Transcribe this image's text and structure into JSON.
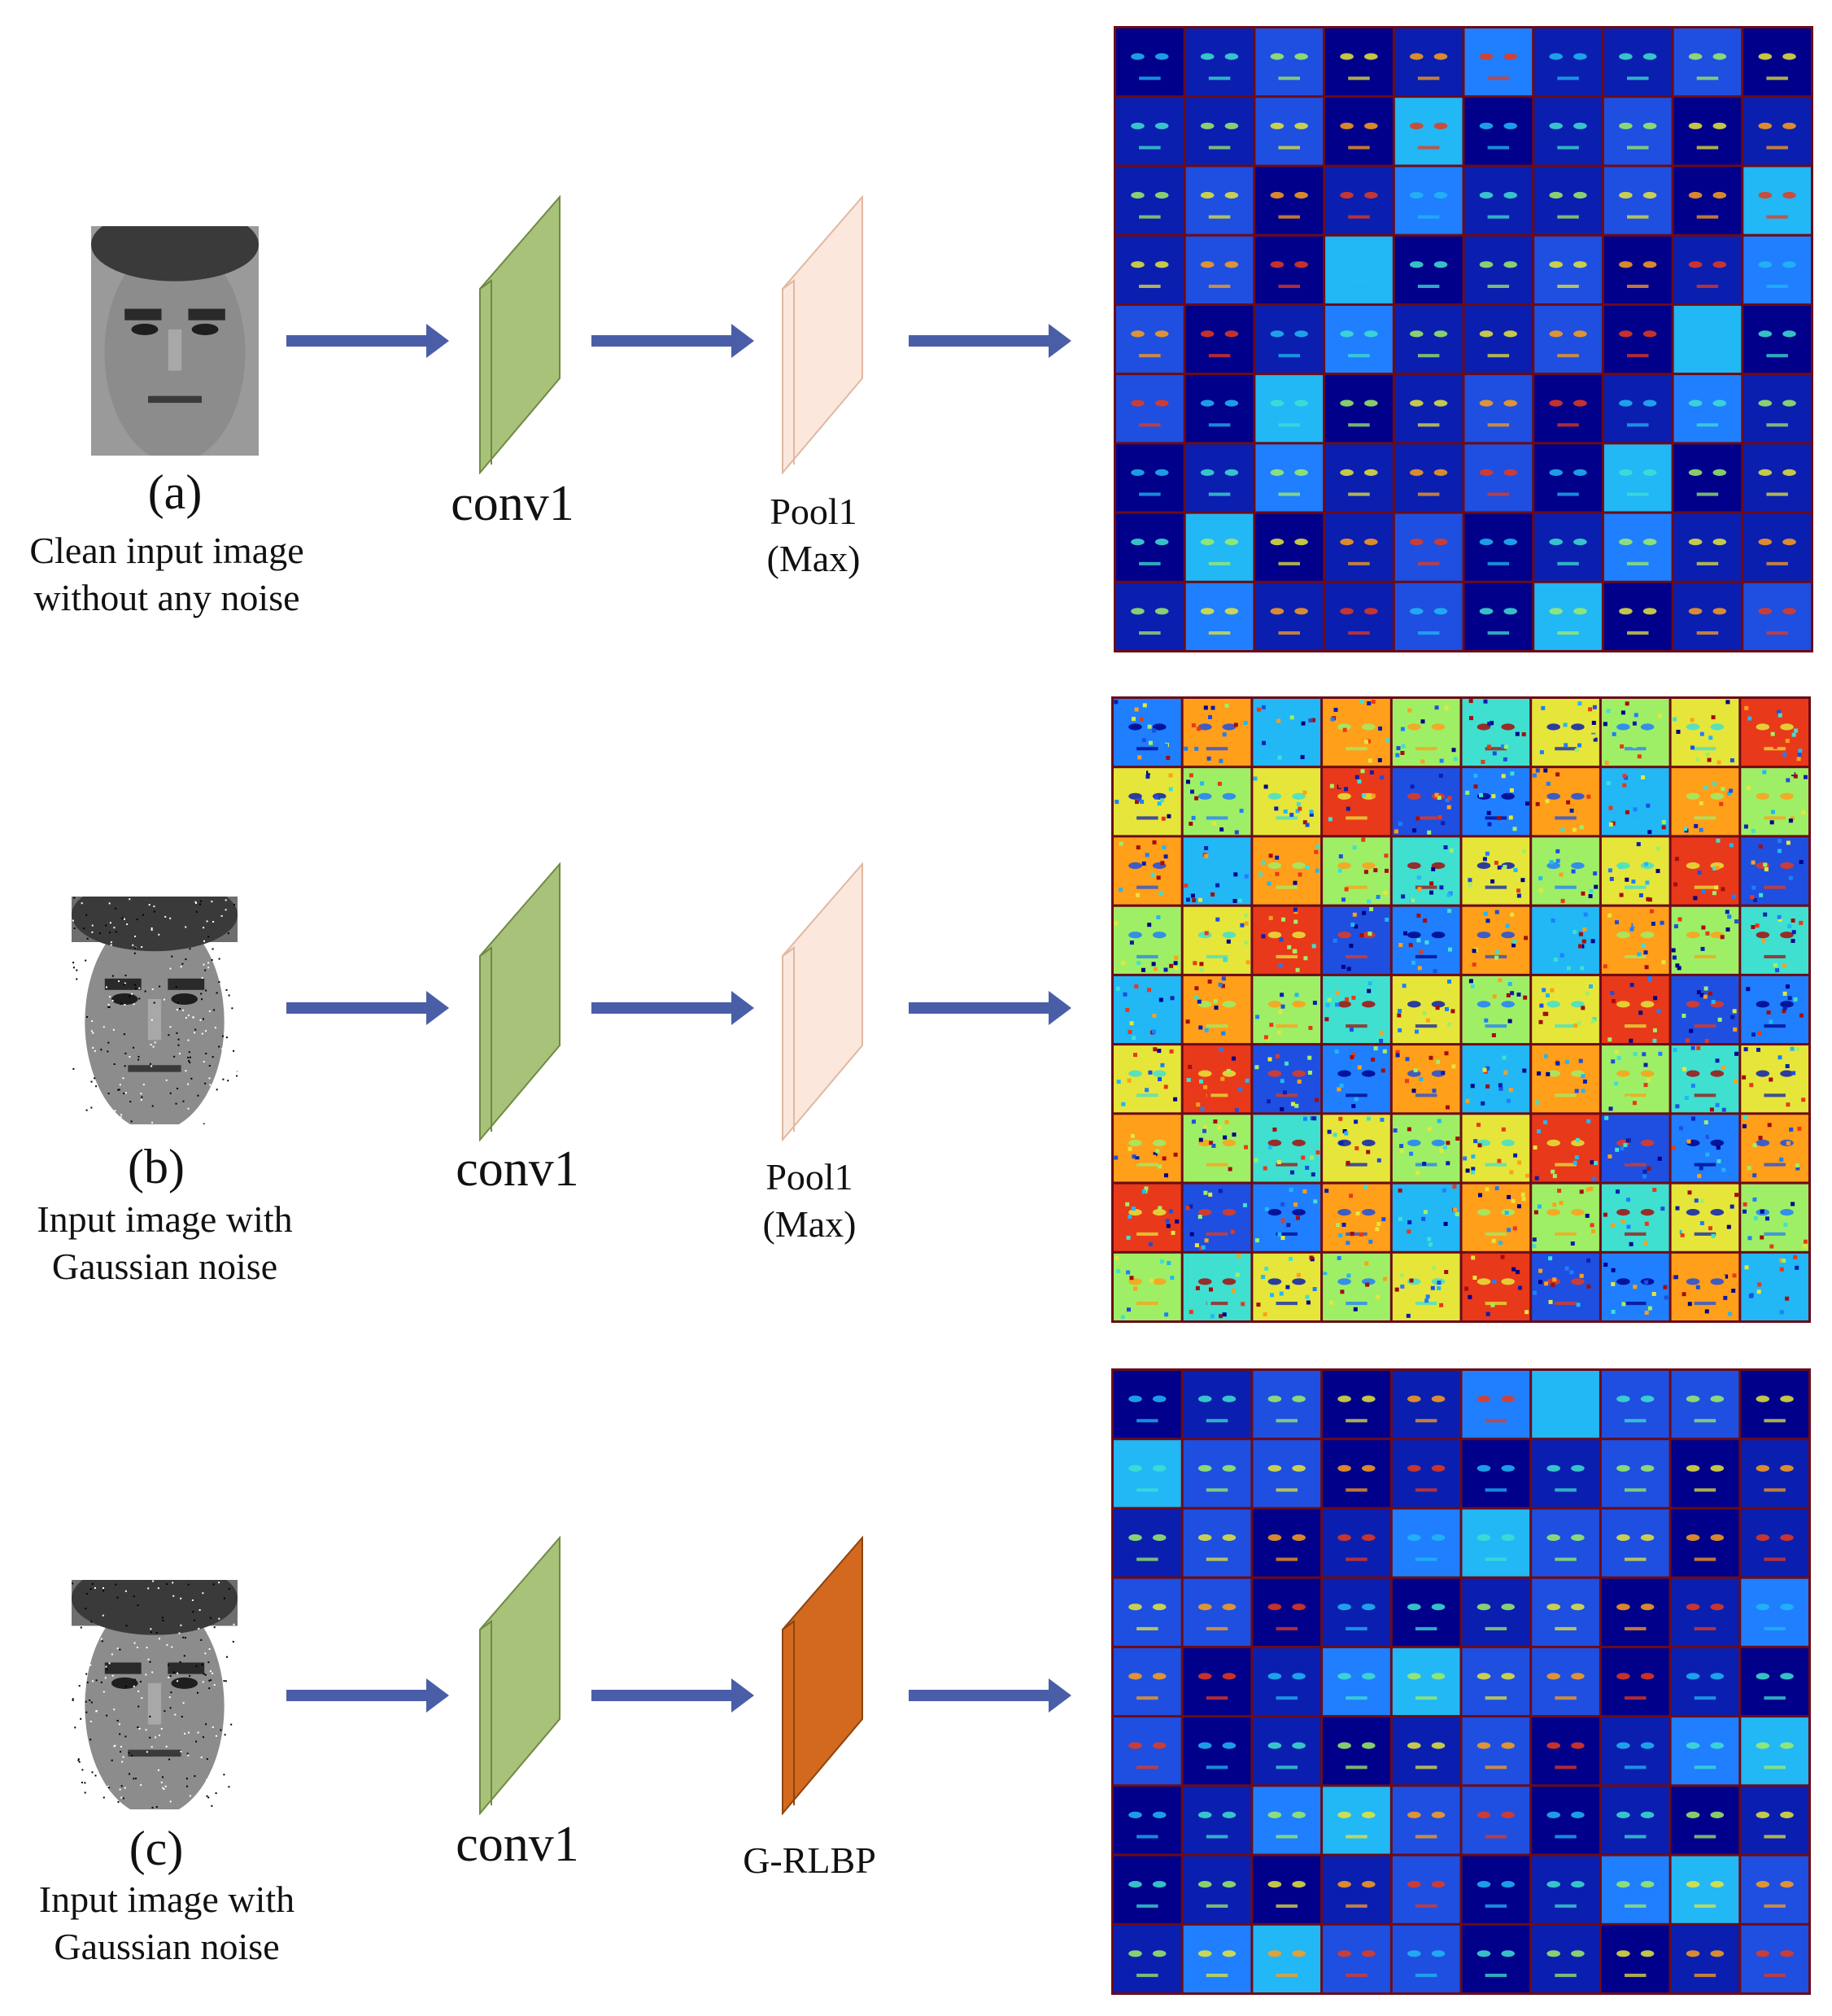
{
  "rows": [
    {
      "letter": "(a)",
      "caption_line1": "Clean input image",
      "caption_line2": "without any noise",
      "layer1": "conv1",
      "layer2_line1": "Pool1",
      "layer2_line2": "(Max)",
      "noisy": false,
      "layer2_color": "#fbe7dc"
    },
    {
      "letter": "(b)",
      "caption_line1": "Input image with",
      "caption_line2": "Gaussian noise",
      "layer1": "conv1",
      "layer2_line1": "Pool1",
      "layer2_line2": "(Max)",
      "noisy": true,
      "layer2_color": "#fbe7dc"
    },
    {
      "letter": "(c)",
      "caption_line1": "Input image with",
      "caption_line2": "Gaussian noise",
      "layer1": "conv1",
      "layer2_line1": "G-RLBP",
      "layer2_line2": "",
      "noisy": true,
      "layer2_color": "#d2691e"
    }
  ],
  "colors": {
    "arrow": "#4a5ea8",
    "conv1": "#a9c27a",
    "grid_line": "#7a1020"
  }
}
